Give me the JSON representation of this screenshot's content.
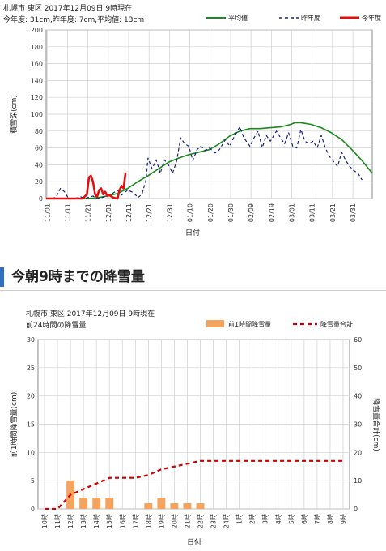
{
  "section_title": "今朝9時までの降雪量",
  "chart_data": [
    {
      "type": "line",
      "header_line1": "札幌市 東区 2017年12月09日 9時現在",
      "header_line2": "今年度: 31cm,昨年度: 7cm,平均値: 13cm",
      "xlabel": "日付",
      "ylabel": "積雪深(cm)",
      "ylim": [
        0,
        200
      ],
      "yticks": [
        0,
        20,
        40,
        60,
        80,
        100,
        120,
        140,
        160,
        180,
        200
      ],
      "grid": true,
      "legend_position": "top-right",
      "x_tick_labels": [
        "11/01",
        "11/11",
        "11/21",
        "12/01",
        "12/11",
        "12/21",
        "12/31",
        "01/10",
        "01/20",
        "01/30",
        "02/09",
        "02/19",
        "03/01",
        "03/11",
        "03/21",
        "03/31"
      ],
      "colors": {
        "average": "#1a8a1a",
        "last_year": "#1a237e",
        "this_year": "#e01010"
      },
      "series": [
        {
          "name": "平均値",
          "style": "solid",
          "points": [
            [
              0,
              0
            ],
            [
              20,
              0
            ],
            [
              25,
              1
            ],
            [
              30,
              3
            ],
            [
              35,
              6
            ],
            [
              40,
              12
            ],
            [
              45,
              20
            ],
            [
              50,
              27
            ],
            [
              55,
              35
            ],
            [
              60,
              43
            ],
            [
              65,
              48
            ],
            [
              70,
              52
            ],
            [
              75,
              55
            ],
            [
              80,
              58
            ],
            [
              85,
              65
            ],
            [
              90,
              74
            ],
            [
              95,
              80
            ],
            [
              100,
              83
            ],
            [
              105,
              83
            ],
            [
              110,
              84
            ],
            [
              115,
              85
            ],
            [
              120,
              88
            ],
            [
              122,
              90
            ],
            [
              125,
              90
            ],
            [
              130,
              88
            ],
            [
              135,
              84
            ],
            [
              140,
              78
            ],
            [
              145,
              70
            ],
            [
              150,
              58
            ],
            [
              155,
              45
            ],
            [
              160,
              30
            ]
          ]
        },
        {
          "name": "昨年度",
          "style": "dashed",
          "points": [
            [
              0,
              0
            ],
            [
              3,
              0
            ],
            [
              5,
              2
            ],
            [
              7,
              12
            ],
            [
              9,
              8
            ],
            [
              11,
              0
            ],
            [
              14,
              0
            ],
            [
              17,
              2
            ],
            [
              19,
              0
            ],
            [
              23,
              3
            ],
            [
              25,
              0
            ],
            [
              27,
              1
            ],
            [
              30,
              3
            ],
            [
              32,
              5
            ],
            [
              35,
              10
            ],
            [
              37,
              4
            ],
            [
              39,
              8
            ],
            [
              40,
              10
            ],
            [
              42,
              8
            ],
            [
              44,
              4
            ],
            [
              45,
              1
            ],
            [
              47,
              5
            ],
            [
              49,
              22
            ],
            [
              50,
              48
            ],
            [
              52,
              35
            ],
            [
              54,
              46
            ],
            [
              56,
              30
            ],
            [
              58,
              46
            ],
            [
              60,
              40
            ],
            [
              62,
              30
            ],
            [
              64,
              44
            ],
            [
              66,
              72
            ],
            [
              68,
              65
            ],
            [
              70,
              62
            ],
            [
              72,
              45
            ],
            [
              74,
              58
            ],
            [
              76,
              62
            ],
            [
              78,
              57
            ],
            [
              80,
              60
            ],
            [
              83,
              54
            ],
            [
              85,
              58
            ],
            [
              88,
              70
            ],
            [
              90,
              62
            ],
            [
              92,
              72
            ],
            [
              95,
              85
            ],
            [
              97,
              72
            ],
            [
              100,
              62
            ],
            [
              102,
              72
            ],
            [
              104,
              80
            ],
            [
              106,
              60
            ],
            [
              108,
              75
            ],
            [
              110,
              68
            ],
            [
              113,
              80
            ],
            [
              115,
              72
            ],
            [
              117,
              65
            ],
            [
              119,
              78
            ],
            [
              121,
              62
            ],
            [
              123,
              60
            ],
            [
              125,
              82
            ],
            [
              127,
              68
            ],
            [
              129,
              65
            ],
            [
              131,
              68
            ],
            [
              133,
              60
            ],
            [
              135,
              75
            ],
            [
              137,
              60
            ],
            [
              139,
              50
            ],
            [
              141,
              44
            ],
            [
              143,
              38
            ],
            [
              145,
              55
            ],
            [
              147,
              45
            ],
            [
              149,
              38
            ],
            [
              151,
              33
            ],
            [
              153,
              30
            ],
            [
              155,
              22
            ]
          ]
        },
        {
          "name": "今年度",
          "style": "solid",
          "points": [
            [
              0,
              0
            ],
            [
              12,
              0
            ],
            [
              18,
              0
            ],
            [
              20,
              5
            ],
            [
              21,
              25
            ],
            [
              22,
              27
            ],
            [
              23,
              20
            ],
            [
              24,
              5
            ],
            [
              25,
              2
            ],
            [
              26,
              10
            ],
            [
              27,
              12
            ],
            [
              28,
              5
            ],
            [
              29,
              8
            ],
            [
              30,
              3
            ],
            [
              31,
              4
            ],
            [
              33,
              1
            ],
            [
              35,
              0
            ],
            [
              36,
              10
            ],
            [
              37,
              15
            ],
            [
              38,
              12
            ],
            [
              39,
              31
            ]
          ]
        }
      ]
    },
    {
      "type": "bar",
      "header_line1": "札幌市 東区 2017年12月09日 9時現在",
      "header_line2": "前24時間の降雪量",
      "xlabel": "日付",
      "ylabel_left": "前1時間降雪量(cm)",
      "ylabel_right": "降雪量合計(cm)",
      "ylim_left": [
        0,
        30
      ],
      "ylim_right": [
        0,
        60
      ],
      "yticks_left": [
        0,
        5,
        10,
        15,
        20,
        25,
        30
      ],
      "yticks_right": [
        0,
        10,
        20,
        30,
        40,
        50,
        60
      ],
      "grid": true,
      "legend_position": "top-right",
      "categories": [
        "10時",
        "11時",
        "12時",
        "13時",
        "14時",
        "15時",
        "16時",
        "17時",
        "18時",
        "19時",
        "20時",
        "21時",
        "22時",
        "23時",
        "24時",
        "1時",
        "2時",
        "3時",
        "4時",
        "5時",
        "6時",
        "7時",
        "8時",
        "9時"
      ],
      "colors": {
        "hourly": "#f4a460",
        "total": "#cc0000"
      },
      "series": [
        {
          "name": "前1時間降雪量",
          "axis": "left",
          "values": [
            0,
            0,
            5,
            2,
            2,
            2,
            0,
            0,
            1,
            2,
            1,
            1,
            1,
            0,
            0,
            0,
            0,
            0,
            0,
            0,
            0,
            0,
            0,
            0
          ]
        },
        {
          "name": "降雪量合計",
          "axis": "right",
          "values": [
            0,
            0,
            5,
            7,
            9,
            11,
            11,
            11,
            12,
            14,
            15,
            16,
            17,
            17,
            17,
            17,
            17,
            17,
            17,
            17,
            17,
            17,
            17,
            17
          ]
        }
      ]
    }
  ]
}
